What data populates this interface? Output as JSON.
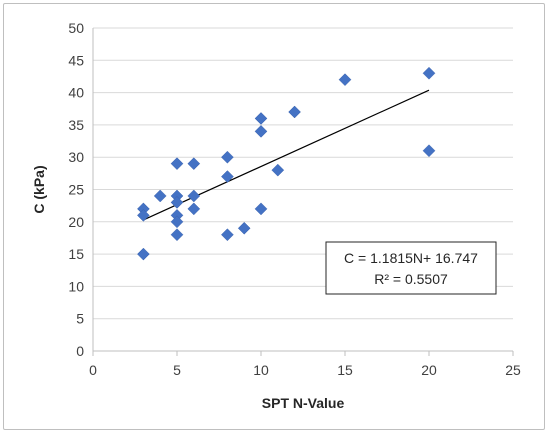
{
  "chart_data": {
    "type": "scatter",
    "title": "",
    "xlabel": "SPT N-Value",
    "ylabel": "C (kPa)",
    "xlim": [
      0,
      25
    ],
    "ylim": [
      0,
      50
    ],
    "x_ticks": [
      0,
      5,
      10,
      15,
      20,
      25
    ],
    "y_ticks": [
      0,
      5,
      10,
      15,
      20,
      25,
      30,
      35,
      40,
      45,
      50
    ],
    "grid": "horizontal",
    "marker": "diamond",
    "marker_color": "#4472c4",
    "points": [
      {
        "x": 3,
        "y": 22
      },
      {
        "x": 3,
        "y": 21
      },
      {
        "x": 3,
        "y": 15
      },
      {
        "x": 4,
        "y": 24
      },
      {
        "x": 5,
        "y": 29
      },
      {
        "x": 5,
        "y": 24
      },
      {
        "x": 5,
        "y": 23
      },
      {
        "x": 5,
        "y": 21
      },
      {
        "x": 5,
        "y": 20
      },
      {
        "x": 5,
        "y": 18
      },
      {
        "x": 6,
        "y": 29
      },
      {
        "x": 6,
        "y": 24
      },
      {
        "x": 6,
        "y": 22
      },
      {
        "x": 8,
        "y": 30
      },
      {
        "x": 8,
        "y": 27
      },
      {
        "x": 8,
        "y": 18
      },
      {
        "x": 9,
        "y": 19
      },
      {
        "x": 10,
        "y": 36
      },
      {
        "x": 10,
        "y": 34
      },
      {
        "x": 10,
        "y": 22
      },
      {
        "x": 11,
        "y": 28
      },
      {
        "x": 12,
        "y": 37
      },
      {
        "x": 15,
        "y": 42
      },
      {
        "x": 20,
        "y": 43
      },
      {
        "x": 20,
        "y": 31
      }
    ],
    "trendline": {
      "slope": 1.1815,
      "intercept": 16.747,
      "x_range": [
        3,
        20
      ],
      "color": "#000000"
    },
    "annotation": {
      "equation": "C = 1.1815N+ 16.747",
      "r_squared": "R² = 0.5507"
    }
  }
}
